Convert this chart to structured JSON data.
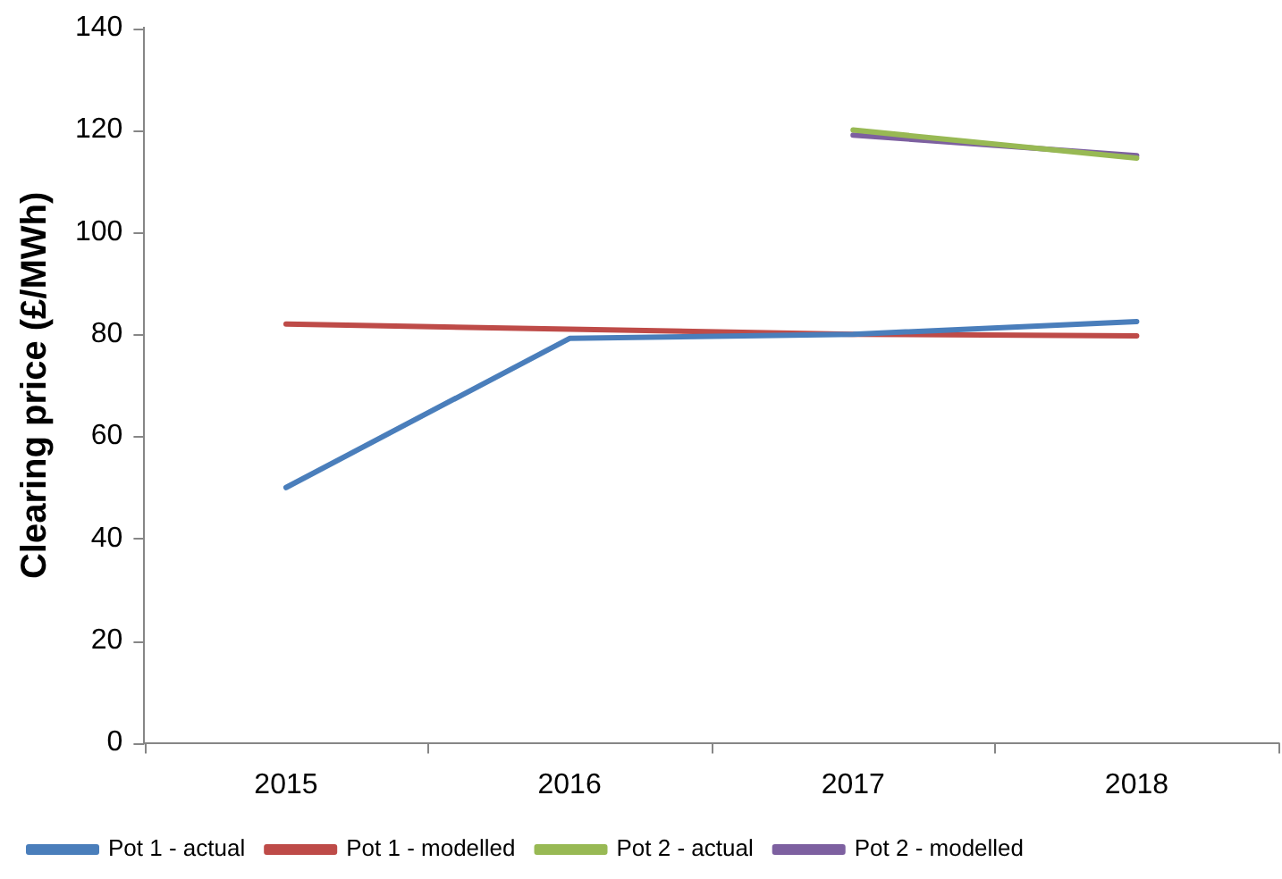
{
  "chart_data": {
    "type": "line",
    "ylabel": "Clearing price (£/MWh)",
    "categories": [
      "2015",
      "2016",
      "2017",
      "2018"
    ],
    "series": [
      {
        "name": "Pot 1 - actual",
        "color": "#4a7ebb",
        "values": [
          50,
          79.2,
          80,
          82.5
        ]
      },
      {
        "name": "Pot 1 - modelled",
        "color": "#be4b48",
        "values": [
          82,
          81,
          80,
          79.7
        ]
      },
      {
        "name": "Pot 2 - actual",
        "color": "#98b954",
        "values": [
          null,
          null,
          120,
          114.5
        ]
      },
      {
        "name": "Pot 2 - modelled",
        "color": "#7d60a0",
        "values": [
          null,
          null,
          119,
          115
        ]
      }
    ],
    "ylim": [
      0,
      140
    ],
    "yticks": [
      0,
      20,
      40,
      60,
      80,
      100,
      120,
      140
    ],
    "grid": false,
    "legend": "bottom left",
    "marker": "none",
    "line_style": "solid"
  }
}
